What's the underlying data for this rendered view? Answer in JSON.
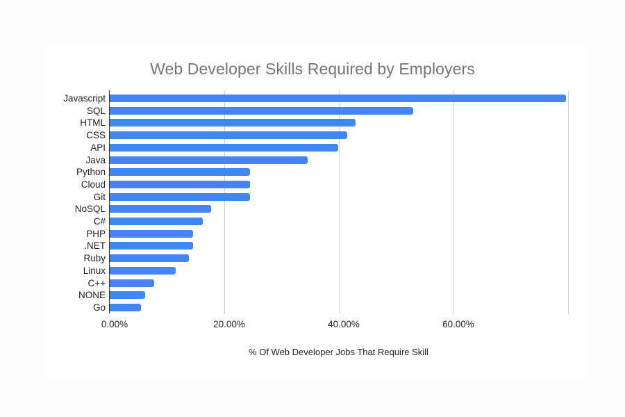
{
  "chart_data": {
    "type": "bar",
    "orientation": "horizontal",
    "title": "Web Developer Skills Required by Employers",
    "xlabel": "% Of Web Developer Jobs That Require Skill",
    "ylabel": "",
    "categories": [
      "Javascript",
      "SQL",
      "HTML",
      "CSS",
      "API",
      "Java",
      "Python",
      "Cloud",
      "Git",
      "NoSQL",
      "C#",
      "PHP",
      ".NET",
      "Ruby",
      "Linux",
      "C++",
      "NONE",
      "Go"
    ],
    "values": [
      79.6,
      53.0,
      42.9,
      41.5,
      39.9,
      34.5,
      24.5,
      24.5,
      24.5,
      17.7,
      16.2,
      14.5,
      14.5,
      13.8,
      11.5,
      7.8,
      6.2,
      5.4
    ],
    "unit": "%",
    "xlim": [
      0,
      80
    ],
    "xticks": [
      "0.00%",
      "20.00%",
      "40.00%",
      "60.00%"
    ],
    "grid": true,
    "legend": "none",
    "bar_color": "#4285f4"
  }
}
